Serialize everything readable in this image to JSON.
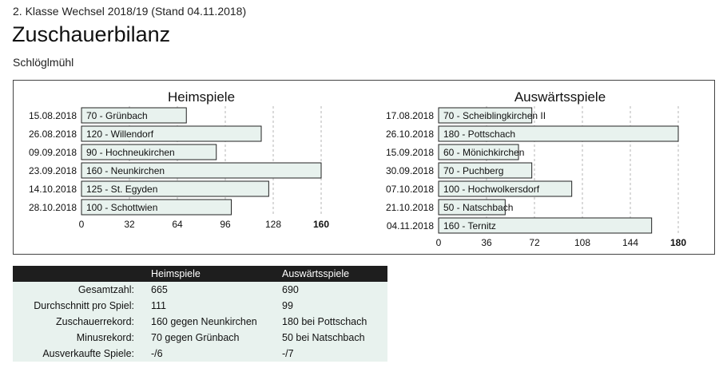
{
  "header": {
    "league": "2. Klasse Wechsel 2018/19 (Stand 04.11.2018)",
    "title": "Zuschauerbilanz",
    "team": "Schlöglmühl"
  },
  "chart_data": [
    {
      "type": "bar",
      "orientation": "horizontal",
      "title": "Heimspiele",
      "xlim": [
        0,
        160
      ],
      "xticks": [
        0,
        32,
        64,
        96,
        128,
        160
      ],
      "grid": true,
      "bar_color": "#e8f2ee",
      "dates": [
        "15.08.2018",
        "26.08.2018",
        "09.09.2018",
        "23.09.2018",
        "14.10.2018",
        "28.10.2018"
      ],
      "opponents": [
        "Grünbach",
        "Willendorf",
        "Hochneukirchen",
        "Neunkirchen",
        "St. Egyden",
        "Schottwien"
      ],
      "values": [
        70,
        120,
        90,
        160,
        125,
        100
      ]
    },
    {
      "type": "bar",
      "orientation": "horizontal",
      "title": "Auswärtsspiele",
      "xlim": [
        0,
        180
      ],
      "xticks": [
        0,
        36,
        72,
        108,
        144,
        180
      ],
      "grid": true,
      "bar_color": "#e8f2ee",
      "dates": [
        "17.08.2018",
        "26.10.2018",
        "15.09.2018",
        "30.09.2018",
        "07.10.2018",
        "21.10.2018",
        "04.11.2018"
      ],
      "opponents": [
        "Scheiblingkirchen II",
        "Pottschach",
        "Mönichkirchen",
        "Puchberg",
        "Hochwolkersdorf",
        "Natschbach",
        "Ternitz"
      ],
      "values": [
        70,
        180,
        60,
        70,
        100,
        50,
        160
      ]
    }
  ],
  "stats": {
    "columns": [
      "",
      "Heimspiele",
      "Auswärtsspiele"
    ],
    "rows": [
      {
        "label": "Gesamtzahl:",
        "home": "665",
        "away": "690"
      },
      {
        "label": "Durchschnitt pro Spiel:",
        "home": "111",
        "away": "99"
      },
      {
        "label": "Zuschauerrekord:",
        "home": "160 gegen Neunkirchen",
        "away": "180 bei Pottschach"
      },
      {
        "label": "Minusrekord:",
        "home": "70 gegen Grünbach",
        "away": "50 bei Natschbach"
      },
      {
        "label": "Ausverkaufte Spiele:",
        "home": "-/6",
        "away": "-/7"
      }
    ]
  }
}
